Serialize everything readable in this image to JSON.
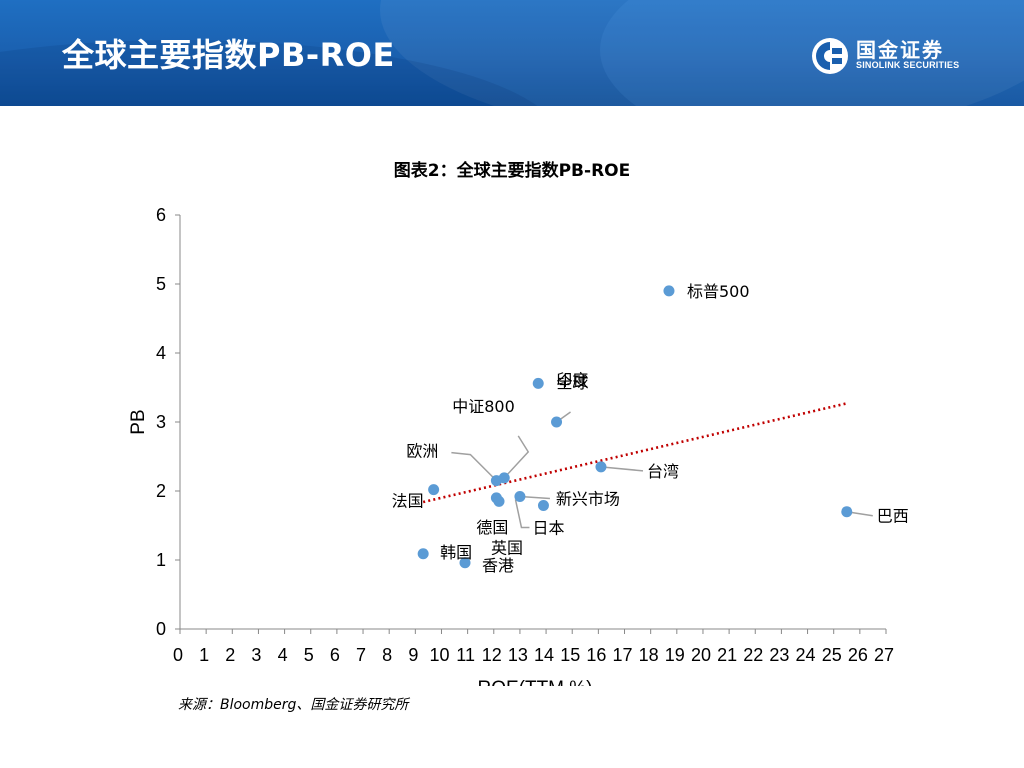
{
  "header": {
    "title": "全球主要指数PB-ROE",
    "logo_cn": "国金证券",
    "logo_en": "SINOLINK SECURITIES"
  },
  "colors": {
    "banner": "#1a5fae",
    "point": "#5b9bd5",
    "trendline": "#c00000"
  },
  "chart_data": {
    "type": "scatter",
    "title": "图表2：全球主要指数PB-ROE",
    "xlabel": "ROE(TTM,%)",
    "ylabel": "PB",
    "xlim": [
      0,
      27
    ],
    "ylim": [
      0,
      6
    ],
    "xticks": [
      0,
      1,
      2,
      3,
      4,
      5,
      6,
      7,
      8,
      9,
      10,
      11,
      12,
      13,
      14,
      15,
      16,
      17,
      18,
      19,
      20,
      21,
      22,
      23,
      24,
      25,
      26,
      27
    ],
    "yticks": [
      0,
      1,
      2,
      3,
      4,
      5,
      6
    ],
    "grid": false,
    "legend": "none",
    "points": [
      {
        "label": "标普500",
        "x": 18.7,
        "y": 4.9
      },
      {
        "label": "印度",
        "x": 13.7,
        "y": 3.56
      },
      {
        "label": "全球",
        "x": 14.4,
        "y": 3.0
      },
      {
        "label": "中证800",
        "x": 12.4,
        "y": 2.19
      },
      {
        "label": "欧洲",
        "x": 12.1,
        "y": 2.15
      },
      {
        "label": "台湾",
        "x": 16.1,
        "y": 2.35
      },
      {
        "label": "法国",
        "x": 9.7,
        "y": 2.02
      },
      {
        "label": "新兴市场",
        "x": 13.0,
        "y": 1.92
      },
      {
        "label": "德国",
        "x": 12.1,
        "y": 1.9
      },
      {
        "label": "英国",
        "x": 12.2,
        "y": 1.85
      },
      {
        "label": "日本",
        "x": 13.9,
        "y": 1.79
      },
      {
        "label": "巴西",
        "x": 25.5,
        "y": 1.7
      },
      {
        "label": "韩国",
        "x": 9.3,
        "y": 1.09
      },
      {
        "label": "香港",
        "x": 10.9,
        "y": 0.96
      }
    ],
    "trendline": {
      "x": [
        9.3,
        25.5
      ],
      "y": [
        1.84,
        3.27
      ]
    }
  },
  "source": "来源：Bloomberg、国金证券研究所"
}
